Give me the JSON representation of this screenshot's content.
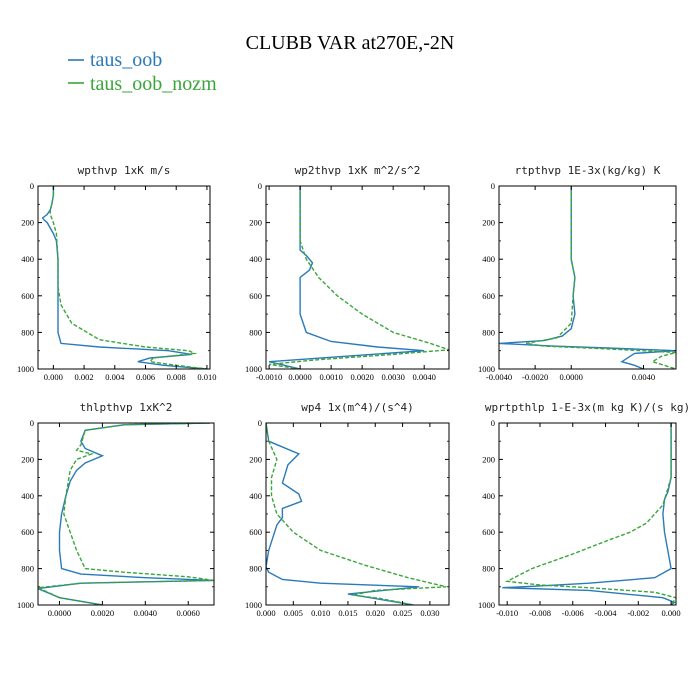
{
  "figure": {
    "title": "CLUBB VAR at270E,-2N",
    "legend": [
      {
        "name": "taus_oob",
        "color": "#2a7ab9"
      },
      {
        "name": "taus_oob_nozm",
        "color": "#3aa63a"
      }
    ]
  },
  "chart_data": [
    {
      "type": "line",
      "title": "wpthvp   1xK m/s",
      "orientation": "profile",
      "xlim": [
        -0.001,
        0.0102
      ],
      "ylim": [
        1000,
        0
      ],
      "yticks": [
        0,
        200,
        400,
        600,
        800,
        1000
      ],
      "xticks": [
        0.0,
        0.002,
        0.004,
        0.006,
        0.008,
        0.01
      ],
      "xticklabels": [
        "0.000",
        "0.002",
        "0.004",
        "0.006",
        "0.008",
        "0.010"
      ],
      "series": [
        {
          "name": "taus_oob",
          "color": "#2a7ab9",
          "dash": false,
          "x": [
            0.0,
            0.0,
            -0.0001,
            -0.0002,
            -0.0004,
            -0.0007,
            -0.0006,
            -0.0004,
            -0.0002,
            0.0,
            0.0002,
            0.0003,
            0.0003,
            0.0003,
            0.0003,
            0.0003,
            0.0005,
            0.003,
            0.0075,
            0.009,
            0.0063,
            0.0055,
            0.0072,
            0.01
          ],
          "y": [
            0,
            50,
            100,
            130,
            155,
            175,
            185,
            200,
            230,
            260,
            300,
            400,
            500,
            600,
            700,
            800,
            860,
            880,
            900,
            920,
            940,
            960,
            980,
            1000
          ]
        },
        {
          "name": "taus_oob_nozm",
          "color": "#3aa63a",
          "dash": true,
          "x": [
            0.0,
            0.0,
            -0.0001,
            -0.0002,
            -0.0002,
            0.0,
            0.0002,
            0.0003,
            0.0003,
            0.0005,
            0.0012,
            0.003,
            0.006,
            0.0088,
            0.0092,
            0.0065,
            0.0063,
            0.008,
            0.01
          ],
          "y": [
            0,
            50,
            100,
            130,
            155,
            200,
            260,
            400,
            550,
            650,
            750,
            840,
            880,
            900,
            915,
            940,
            960,
            980,
            1000
          ]
        }
      ]
    },
    {
      "type": "line",
      "title": "wp2thvp   1xK m^2/s^2",
      "orientation": "profile",
      "xlim": [
        -0.0011,
        0.0048
      ],
      "ylim": [
        1000,
        0
      ],
      "yticks": [
        0,
        200,
        400,
        600,
        800,
        1000
      ],
      "xticks": [
        -0.001,
        0.0,
        0.001,
        0.002,
        0.003,
        0.004
      ],
      "xticklabels": [
        "-0.0010",
        "0.0000",
        "0.0010",
        "0.0020",
        "0.0030",
        "0.0040"
      ],
      "series": [
        {
          "name": "taus_oob",
          "color": "#2a7ab9",
          "dash": false,
          "x": [
            0.0,
            0.0,
            0.0,
            0.0,
            0.0,
            0.0002,
            0.0004,
            0.0003,
            0.0,
            0.0,
            0.0,
            0.0002,
            0.001,
            0.0025,
            0.004,
            0.0015,
            -0.001,
            0.0
          ],
          "y": [
            0,
            100,
            200,
            300,
            350,
            380,
            420,
            460,
            500,
            540,
            700,
            800,
            850,
            880,
            900,
            930,
            960,
            1000
          ]
        },
        {
          "name": "taus_oob_nozm",
          "color": "#3aa63a",
          "dash": true,
          "x": [
            0.0,
            0.0,
            0.0,
            0.0,
            0.0002,
            0.0006,
            0.0012,
            0.002,
            0.003,
            0.0042,
            0.0048,
            0.003,
            0.0005,
            -0.001,
            0.0
          ],
          "y": [
            0,
            100,
            200,
            300,
            400,
            500,
            600,
            700,
            800,
            860,
            895,
            920,
            950,
            975,
            1000
          ]
        }
      ]
    },
    {
      "type": "line",
      "title": "rtpthvp   1E-3x(kg/kg) K",
      "orientation": "profile",
      "xlim": [
        -0.004,
        0.0058
      ],
      "ylim": [
        1000,
        0
      ],
      "yticks": [
        0,
        200,
        400,
        600,
        800,
        1000
      ],
      "xticks": [
        -0.004,
        -0.002,
        0.0,
        0.004
      ],
      "xticklabels": [
        "-0.0040",
        "-0.0020",
        "0.0000",
        "0.0040"
      ],
      "series": [
        {
          "name": "taus_oob",
          "color": "#2a7ab9",
          "dash": false,
          "x": [
            0.0,
            0.0,
            0.0,
            0.0002,
            0.0001,
            0.0002,
            0.0,
            -0.0005,
            -0.0015,
            -0.004,
            -0.001,
            0.002,
            0.0058,
            0.0035,
            0.0028,
            0.0035,
            0.004
          ],
          "y": [
            0,
            200,
            400,
            500,
            600,
            700,
            780,
            820,
            845,
            860,
            875,
            885,
            900,
            915,
            960,
            980,
            1000
          ]
        },
        {
          "name": "taus_oob_nozm",
          "color": "#3aa63a",
          "dash": true,
          "x": [
            0.0,
            0.0,
            0.0,
            0.0002,
            0.0001,
            0.0,
            -0.0008,
            -0.0025,
            -0.0015,
            0.002,
            0.0058,
            0.005,
            0.0045,
            0.0058
          ],
          "y": [
            0,
            200,
            400,
            500,
            600,
            750,
            830,
            860,
            875,
            890,
            910,
            930,
            960,
            1000
          ]
        }
      ]
    },
    {
      "type": "line",
      "title": "thlpthvp   1xK^2",
      "orientation": "profile",
      "xlim": [
        -0.001,
        0.0072
      ],
      "ylim": [
        1000,
        0
      ],
      "yticks": [
        0,
        200,
        400,
        600,
        800,
        1000
      ],
      "xticks": [
        0.0,
        0.002,
        0.004,
        0.006
      ],
      "xticklabels": [
        "0.0000",
        "0.0020",
        "0.0040",
        "0.0060"
      ],
      "series": [
        {
          "name": "taus_oob",
          "color": "#2a7ab9",
          "dash": false,
          "x": [
            0.007,
            0.003,
            0.0012,
            0.001,
            0.0012,
            0.002,
            0.0012,
            0.0008,
            0.0005,
            0.0003,
            0.0001,
            0.0,
            0.0,
            0.0001,
            0.001,
            0.004,
            0.0072,
            0.001,
            -0.001,
            0.0,
            0.002
          ],
          "y": [
            0,
            10,
            40,
            100,
            140,
            180,
            220,
            260,
            320,
            400,
            500,
            600,
            700,
            800,
            830,
            850,
            865,
            880,
            910,
            960,
            1000
          ]
        },
        {
          "name": "taus_oob_nozm",
          "color": "#3aa63a",
          "dash": true,
          "x": [
            0.007,
            0.003,
            0.0012,
            0.001,
            0.0008,
            0.0015,
            0.0008,
            0.0005,
            0.0003,
            0.0002,
            0.0005,
            0.0008,
            0.0012,
            0.003,
            0.006,
            0.0072,
            0.001,
            -0.001,
            0.0,
            0.002
          ],
          "y": [
            0,
            10,
            40,
            120,
            150,
            170,
            200,
            260,
            400,
            500,
            600,
            700,
            800,
            820,
            845,
            865,
            880,
            905,
            960,
            1000
          ]
        }
      ]
    },
    {
      "type": "line",
      "title": "wp4   1x(m^4)/(s^4)",
      "orientation": "profile",
      "xlim": [
        0.0,
        0.0335
      ],
      "ylim": [
        1000,
        0
      ],
      "yticks": [
        0,
        200,
        400,
        600,
        800,
        1000
      ],
      "xticks": [
        0.0,
        0.005,
        0.01,
        0.015,
        0.02,
        0.025,
        0.03
      ],
      "xticklabels": [
        "0.000",
        "0.005",
        "0.010",
        "0.015",
        "0.020",
        "0.025",
        "0.030"
      ],
      "series": [
        {
          "name": "taus_oob",
          "color": "#2a7ab9",
          "dash": false,
          "x": [
            0.0,
            0.0005,
            0.006,
            0.004,
            0.003,
            0.006,
            0.0065,
            0.003,
            0.003,
            0.002,
            0.0005,
            0.0,
            0.0005,
            0.003,
            0.01,
            0.028,
            0.015,
            0.02,
            0.027
          ],
          "y": [
            0,
            100,
            170,
            230,
            330,
            390,
            430,
            470,
            520,
            560,
            700,
            790,
            820,
            860,
            880,
            900,
            940,
            965,
            1000
          ]
        },
        {
          "name": "taus_oob_nozm",
          "color": "#3aa63a",
          "dash": true,
          "x": [
            0.0,
            0.0005,
            0.002,
            0.001,
            0.001,
            0.002,
            0.005,
            0.01,
            0.018,
            0.026,
            0.033,
            0.02,
            0.016,
            0.021,
            0.027
          ],
          "y": [
            0,
            100,
            200,
            300,
            400,
            500,
            600,
            700,
            780,
            850,
            900,
            920,
            945,
            965,
            1000
          ]
        }
      ]
    },
    {
      "type": "line",
      "title": "wprtpthlp   1-E-3x(m kg K)/(s kg)",
      "orientation": "profile",
      "xlim": [
        -0.0105,
        0.0003
      ],
      "ylim": [
        1000,
        0
      ],
      "yticks": [
        0,
        200,
        400,
        600,
        800,
        1000
      ],
      "xticks": [
        -0.01,
        -0.008,
        -0.006,
        -0.004,
        -0.002,
        0.0
      ],
      "xticklabels": [
        "-0.010",
        "-0.008",
        "-0.006",
        "-0.004",
        "-0.002",
        "0.000"
      ],
      "series": [
        {
          "name": "taus_oob",
          "color": "#2a7ab9",
          "dash": false,
          "x": [
            0.0,
            0.0,
            -0.0002,
            -0.0004,
            -0.0005,
            -0.0004,
            -0.0002,
            0.0,
            -0.001,
            -0.005,
            -0.008,
            -0.0103,
            -0.005,
            -0.0005,
            0.0002,
            0.0
          ],
          "y": [
            0,
            300,
            380,
            420,
            500,
            600,
            700,
            800,
            850,
            880,
            895,
            905,
            920,
            960,
            985,
            1000
          ]
        },
        {
          "name": "taus_oob_nozm",
          "color": "#3aa63a",
          "dash": true,
          "x": [
            0.0,
            0.0,
            -0.0005,
            -0.0015,
            -0.0025,
            -0.004,
            -0.006,
            -0.0085,
            -0.01,
            -0.008,
            -0.005,
            -0.001,
            0.0003,
            0.0
          ],
          "y": [
            0,
            300,
            450,
            550,
            600,
            650,
            720,
            800,
            870,
            890,
            905,
            930,
            960,
            1000
          ]
        }
      ]
    }
  ]
}
